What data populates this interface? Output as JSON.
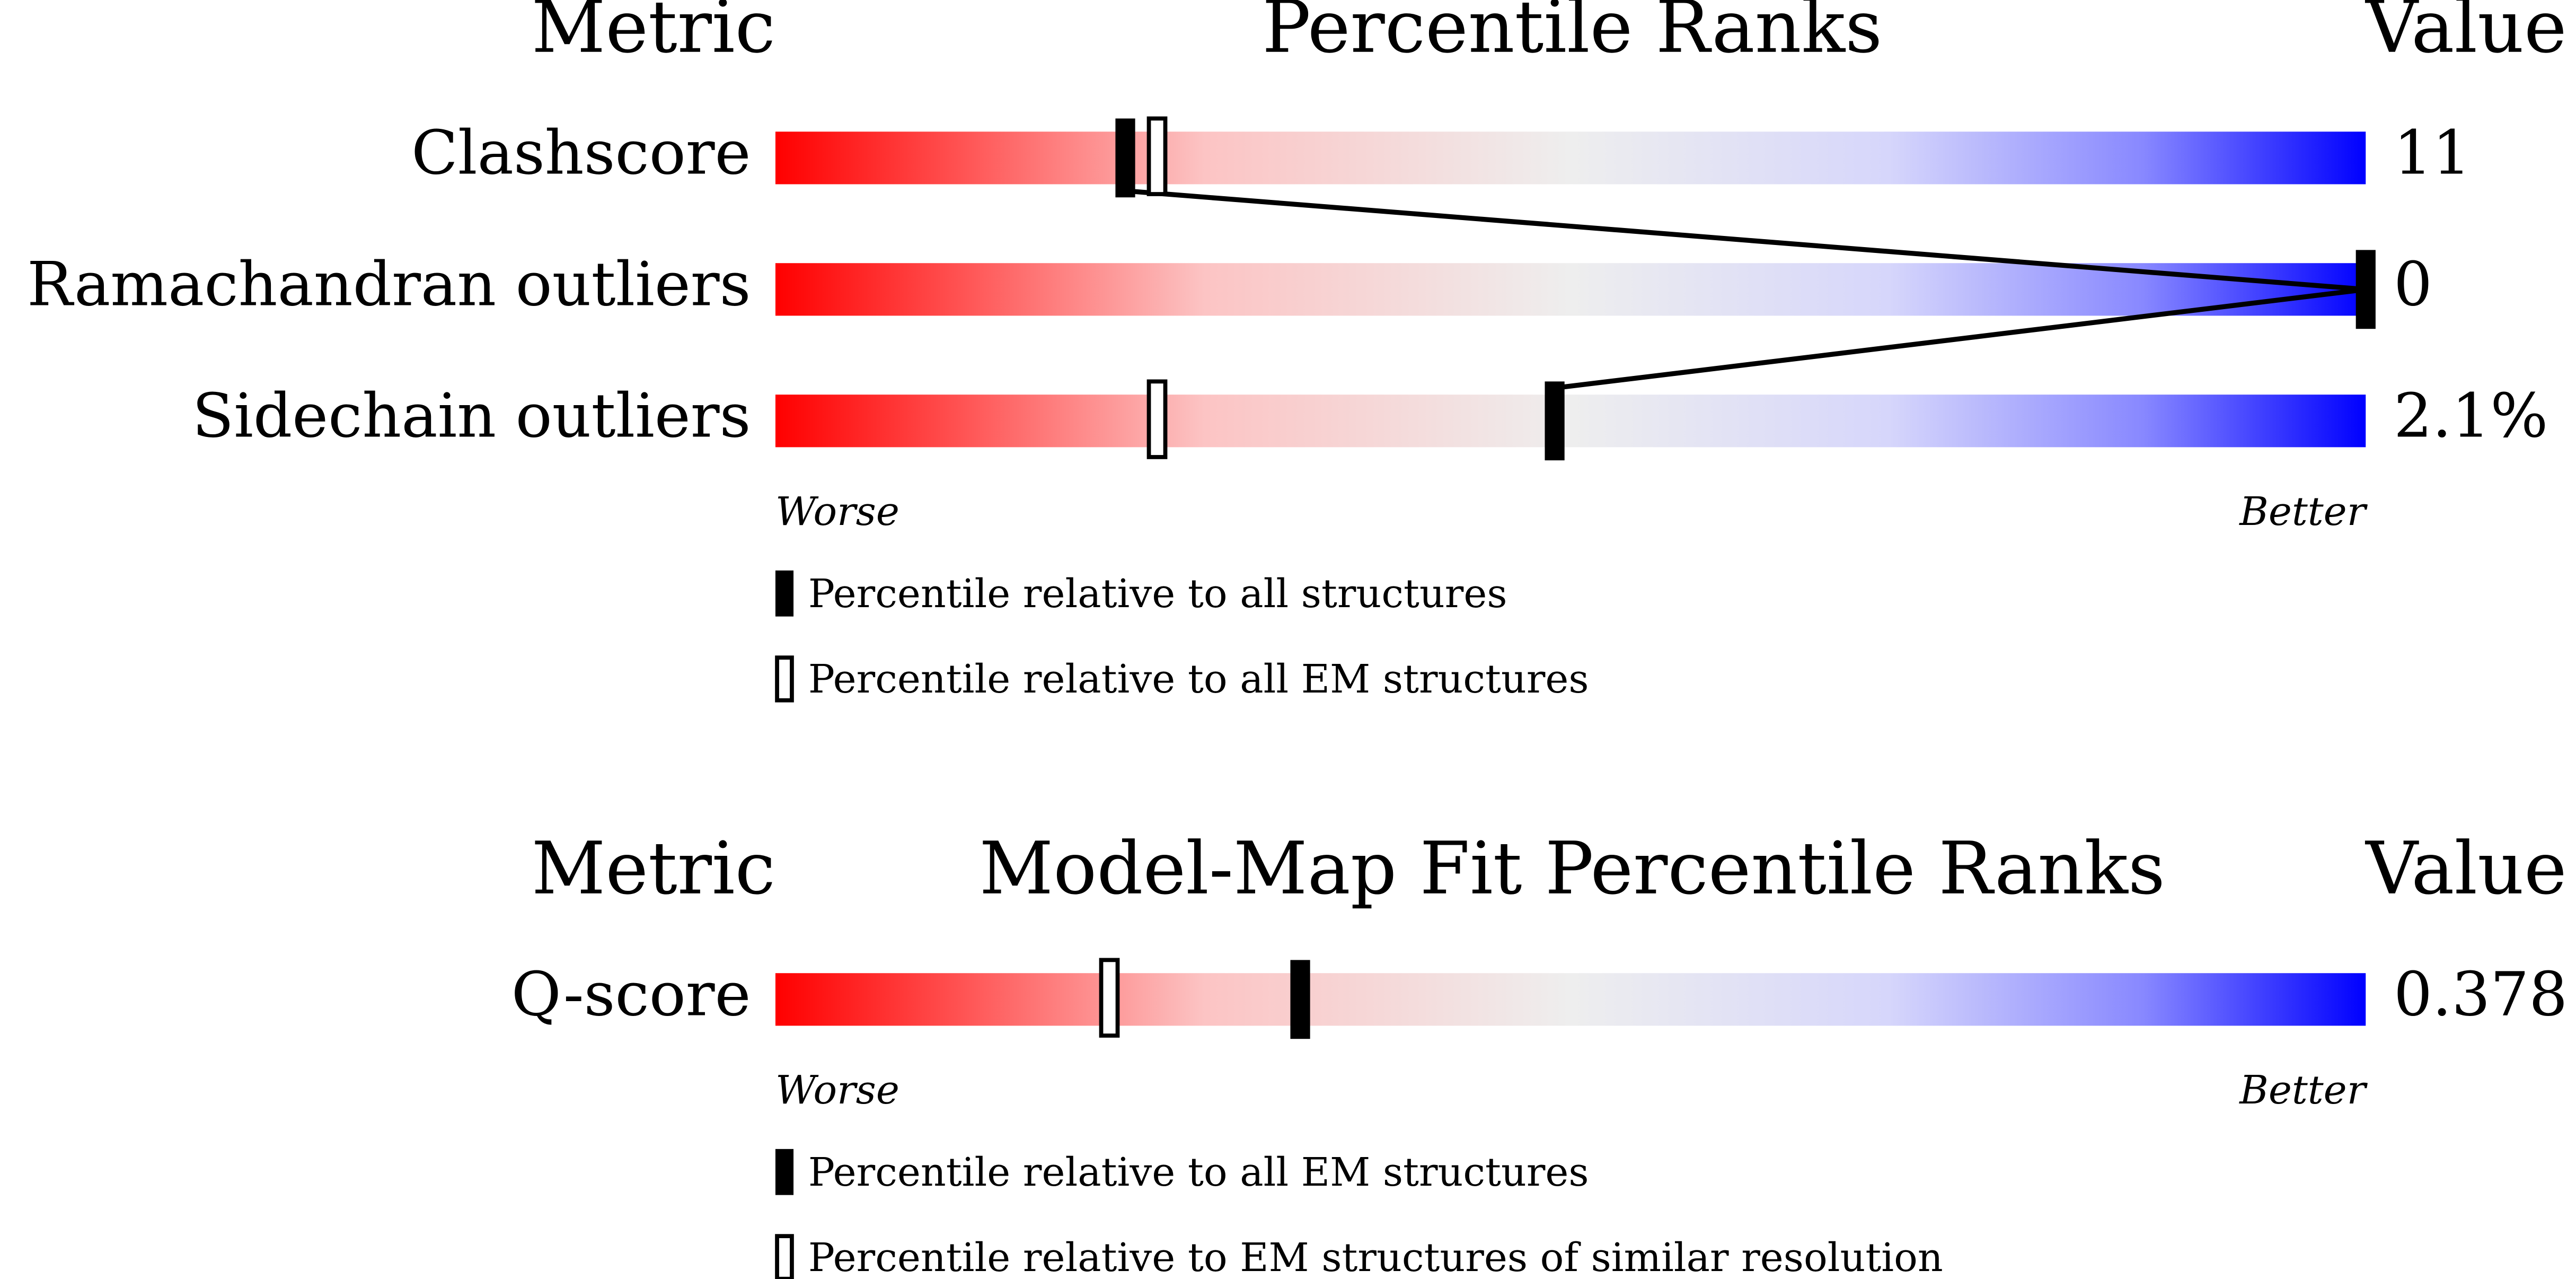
{
  "chart_data": [
    {
      "type": "percentile",
      "metric_header": "Metric",
      "title": "Percentile Ranks",
      "value_header": "Value",
      "categories": [
        "Clashscore",
        "Ramachandran outliers",
        "Sidechain outliers"
      ],
      "metric_values": [
        "11",
        "0",
        "2.1%"
      ],
      "xlim": [
        0,
        100
      ],
      "worse": "Worse",
      "better": "Better",
      "series": [
        {
          "name": "Percentile relative to all structures",
          "style": "filled",
          "connect": true,
          "values": [
            22,
            100,
            49
          ]
        },
        {
          "name": "Percentile relative to all EM structures",
          "style": "open",
          "connect": false,
          "values": [
            24,
            null,
            24
          ]
        }
      ]
    },
    {
      "type": "percentile",
      "metric_header": "Metric",
      "title": "Model-Map Fit Percentile Ranks",
      "value_header": "Value",
      "categories": [
        "Q-score"
      ],
      "metric_values": [
        "0.378"
      ],
      "xlim": [
        0,
        100
      ],
      "worse": "Worse",
      "better": "Better",
      "series": [
        {
          "name": "Percentile relative to all EM structures",
          "style": "filled",
          "connect": true,
          "values": [
            33
          ]
        },
        {
          "name": "Percentile relative to EM structures of similar resolution",
          "style": "open",
          "connect": false,
          "values": [
            21
          ]
        }
      ]
    }
  ]
}
